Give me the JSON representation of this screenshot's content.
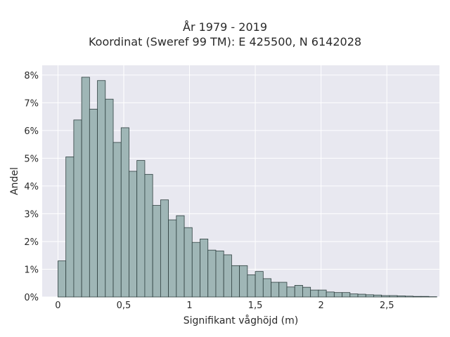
{
  "chart_data": {
    "type": "bar",
    "title_lines": [
      "År 1979 - 2019",
      "Koordinat (Sweref 99 TM): E 425500, N 6142028"
    ],
    "xlabel": "Signifikant våghöjd (m)",
    "ylabel": "Andel",
    "x_ticks": [
      {
        "value": 0,
        "label": "0"
      },
      {
        "value": 0.5,
        "label": "0,5"
      },
      {
        "value": 1,
        "label": "1"
      },
      {
        "value": 1.5,
        "label": "1,5"
      },
      {
        "value": 2,
        "label": "2"
      },
      {
        "value": 2.5,
        "label": "2,5"
      }
    ],
    "y_ticks": [
      {
        "value": 0,
        "label": "0%"
      },
      {
        "value": 1,
        "label": "1%"
      },
      {
        "value": 2,
        "label": "2%"
      },
      {
        "value": 3,
        "label": "3%"
      },
      {
        "value": 4,
        "label": "4%"
      },
      {
        "value": 5,
        "label": "5%"
      },
      {
        "value": 6,
        "label": "6%"
      },
      {
        "value": 7,
        "label": "7%"
      },
      {
        "value": 8,
        "label": "8%"
      }
    ],
    "xlim": [
      -0.12,
      2.9
    ],
    "ylim": [
      0,
      8.35
    ],
    "bin_start": 0,
    "bin_width": 0.06,
    "values_percent": [
      1.3,
      5.05,
      6.38,
      7.92,
      6.77,
      7.8,
      7.13,
      5.57,
      6.1,
      4.53,
      4.92,
      4.42,
      3.3,
      3.5,
      2.78,
      2.93,
      2.5,
      1.97,
      2.09,
      1.69,
      1.66,
      1.52,
      1.13,
      1.13,
      0.8,
      0.92,
      0.66,
      0.53,
      0.53,
      0.36,
      0.42,
      0.35,
      0.25,
      0.25,
      0.18,
      0.16,
      0.16,
      0.11,
      0.1,
      0.08,
      0.07,
      0.05,
      0.05,
      0.04,
      0.03,
      0.02,
      0.02,
      0.01
    ],
    "grid": true,
    "colors": {
      "plot_background": "#e8e8f0",
      "grid": "#ffffff",
      "bar_fill": "#9fb6b6",
      "bar_edge": "#2f4040",
      "text": "#2a2a2a"
    }
  }
}
